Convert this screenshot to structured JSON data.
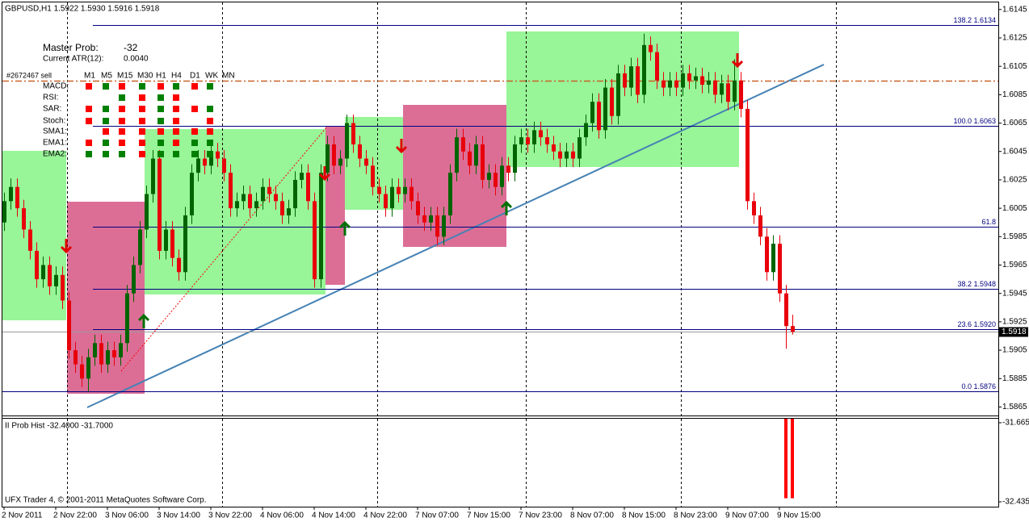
{
  "chart_data": {
    "type": "candlestick",
    "header": "GBPUSD,H1  1.5922 1.5930 1.5916 1.5918",
    "footer": "UFX Trader 4, © 2001-2011 MetaQuotes Software Corp.",
    "up_color": "#006400",
    "down_color": "#e8000b",
    "ylim": [
      1.5859,
      1.615
    ],
    "yticks": [
      1.6145,
      1.6125,
      1.6105,
      1.6085,
      1.6065,
      1.6045,
      1.6025,
      1.6005,
      1.5985,
      1.5965,
      1.5945,
      1.5925,
      1.5905,
      1.5885,
      1.5865
    ],
    "categories": [
      "2 Nov 2011",
      null,
      null,
      null,
      null,
      null,
      null,
      null,
      "2 Nov 22:00",
      null,
      null,
      null,
      null,
      null,
      null,
      null,
      "3 Nov 06:00",
      null,
      null,
      null,
      null,
      null,
      null,
      null,
      "3 Nov 14:00",
      null,
      null,
      null,
      null,
      null,
      null,
      null,
      "3 Nov 22:00",
      null,
      null,
      null,
      null,
      null,
      null,
      null,
      "4 Nov 06:00",
      null,
      null,
      null,
      null,
      null,
      null,
      null,
      "4 Nov 14:00",
      null,
      null,
      null,
      null,
      null,
      null,
      null,
      "4 Nov 22:00",
      null,
      null,
      null,
      null,
      null,
      null,
      null,
      "7 Nov 07:00",
      null,
      null,
      null,
      null,
      null,
      null,
      null,
      "7 Nov 15:00",
      null,
      null,
      null,
      null,
      null,
      null,
      null,
      "7 Nov 23:00",
      null,
      null,
      null,
      null,
      null,
      null,
      null,
      "8 Nov 07:00",
      null,
      null,
      null,
      null,
      null,
      null,
      null,
      "8 Nov 15:00",
      null,
      null,
      null,
      null,
      null,
      null,
      null,
      "8 Nov 23:00",
      null,
      null,
      null,
      null,
      null,
      null,
      null,
      "9 Nov 07:00",
      null,
      null,
      null,
      null,
      null,
      null,
      null,
      "9 Nov 15:00",
      null,
      null
    ],
    "open": [
      1.5995,
      1.601,
      1.602,
      1.6005,
      1.599,
      1.5975,
      1.5955,
      1.5965,
      1.595,
      1.5958,
      1.594,
      1.5905,
      1.5895,
      1.5885,
      1.59,
      1.591,
      1.5895,
      1.5905,
      1.59,
      1.591,
      1.5945,
      1.5965,
      1.599,
      1.6015,
      1.604,
      1.5975,
      1.599,
      1.597,
      1.596,
      1.6,
      1.603,
      1.604,
      1.6035,
      1.6045,
      1.604,
      1.603,
      1.6005,
      1.601,
      1.6015,
      1.6005,
      1.601,
      1.602,
      1.6015,
      1.601,
      1.6,
      1.6005,
      1.6025,
      1.603,
      1.601,
      1.5955,
      1.603,
      1.605,
      1.6035,
      1.604,
      1.6065,
      1.605,
      1.604,
      1.6035,
      1.602,
      1.6015,
      1.6005,
      1.602,
      1.6015,
      1.602,
      1.601,
      1.6,
      1.5995,
      1.6,
      1.5985,
      1.6,
      1.603,
      1.6055,
      1.6045,
      1.6035,
      1.605,
      1.6025,
      1.603,
      1.602,
      1.6035,
      1.603,
      1.605,
      1.6055,
      1.605,
      1.606,
      1.6055,
      1.605,
      1.6045,
      1.604,
      1.6045,
      1.604,
      1.6055,
      1.6065,
      1.608,
      1.606,
      1.609,
      1.607,
      1.61,
      1.609,
      1.6105,
      1.6085,
      1.612,
      1.6115,
      1.6095,
      1.609,
      1.6095,
      1.609,
      1.61,
      1.6095,
      1.6098,
      1.6092,
      1.6095,
      1.6085,
      1.6093,
      1.608,
      1.6095,
      1.6075,
      1.601,
      1.6,
      1.5985,
      1.596,
      1.598,
      1.5945,
      1.5922
    ],
    "high": [
      1.6016,
      1.6026,
      1.6026,
      1.6011,
      1.5996,
      1.5981,
      1.5971,
      1.5971,
      1.5964,
      1.5964,
      1.5946,
      1.5911,
      1.5901,
      1.5906,
      1.5916,
      1.5916,
      1.5911,
      1.5911,
      1.5916,
      1.5951,
      1.5971,
      1.5996,
      1.6021,
      1.6046,
      1.6046,
      1.5996,
      1.5996,
      1.5976,
      1.6006,
      1.6036,
      1.6046,
      1.6046,
      1.6051,
      1.6051,
      1.6046,
      1.6036,
      1.6016,
      1.6021,
      1.6021,
      1.6016,
      1.6026,
      1.6026,
      1.6021,
      1.6016,
      1.6011,
      1.6031,
      1.6036,
      1.6036,
      1.6016,
      1.6036,
      1.6056,
      1.6056,
      1.6046,
      1.6071,
      1.6071,
      1.6056,
      1.6046,
      1.6041,
      1.6026,
      1.6021,
      1.6026,
      1.6026,
      1.6026,
      1.6026,
      1.6016,
      1.6006,
      1.6006,
      1.6006,
      1.6006,
      1.6036,
      1.6061,
      1.6061,
      1.6051,
      1.6056,
      1.6056,
      1.6036,
      1.6036,
      1.6041,
      1.6041,
      1.6056,
      1.6061,
      1.6061,
      1.6066,
      1.6066,
      1.6061,
      1.6056,
      1.6051,
      1.6051,
      1.6051,
      1.6061,
      1.6071,
      1.6086,
      1.6086,
      1.6096,
      1.6096,
      1.6106,
      1.6106,
      1.6111,
      1.6111,
      1.6128,
      1.6126,
      1.6121,
      1.6101,
      1.6101,
      1.6101,
      1.6106,
      1.6106,
      1.6104,
      1.6104,
      1.6101,
      1.6101,
      1.6099,
      1.6099,
      1.611,
      1.6101,
      1.6081,
      1.6016,
      1.6006,
      1.5991,
      1.5986,
      1.5986,
      1.5951,
      1.593
    ],
    "low": [
      1.5989,
      1.6004,
      1.5999,
      1.5984,
      1.5969,
      1.5949,
      1.5949,
      1.5944,
      1.5944,
      1.5934,
      1.5899,
      1.5889,
      1.5879,
      1.5876,
      1.5894,
      1.5889,
      1.5889,
      1.5894,
      1.5894,
      1.5904,
      1.5939,
      1.5959,
      1.5984,
      1.6009,
      1.5969,
      1.5969,
      1.5964,
      1.5954,
      1.5954,
      1.5994,
      1.6024,
      1.6029,
      1.6029,
      1.6034,
      1.6024,
      1.5999,
      1.5999,
      1.6004,
      1.5999,
      1.5999,
      1.6004,
      1.6009,
      1.6004,
      1.5994,
      1.5994,
      1.5999,
      1.6019,
      1.6004,
      1.5949,
      1.5949,
      1.6024,
      1.6029,
      1.6029,
      1.6034,
      1.6044,
      1.6034,
      1.6029,
      1.6014,
      1.6009,
      1.5999,
      1.5999,
      1.6009,
      1.6009,
      1.6004,
      1.5994,
      1.5989,
      1.5989,
      1.5979,
      1.5979,
      1.5994,
      1.6024,
      1.6039,
      1.6029,
      1.6029,
      1.6019,
      1.6019,
      1.6014,
      1.6014,
      1.6024,
      1.6024,
      1.6044,
      1.6044,
      1.6044,
      1.6049,
      1.6044,
      1.6039,
      1.6034,
      1.6034,
      1.6034,
      1.6034,
      1.6049,
      1.6059,
      1.6054,
      1.6054,
      1.6064,
      1.6064,
      1.6084,
      1.6084,
      1.6079,
      1.6079,
      1.6109,
      1.6089,
      1.6084,
      1.6084,
      1.6084,
      1.6084,
      1.6089,
      1.6089,
      1.6086,
      1.6086,
      1.6079,
      1.6079,
      1.6074,
      1.6074,
      1.6069,
      1.6004,
      1.5994,
      1.5979,
      1.5954,
      1.5954,
      1.5939,
      1.5906,
      1.5916
    ],
    "close": [
      1.601,
      1.602,
      1.6005,
      1.599,
      1.5975,
      1.5955,
      1.5965,
      1.595,
      1.5958,
      1.594,
      1.5905,
      1.5895,
      1.5885,
      1.59,
      1.591,
      1.5895,
      1.5905,
      1.59,
      1.591,
      1.5945,
      1.5965,
      1.599,
      1.6015,
      1.604,
      1.5975,
      1.599,
      1.597,
      1.596,
      1.6,
      1.603,
      1.604,
      1.6035,
      1.6045,
      1.604,
      1.603,
      1.6005,
      1.601,
      1.6015,
      1.6005,
      1.601,
      1.602,
      1.6015,
      1.601,
      1.6,
      1.6005,
      1.6025,
      1.603,
      1.601,
      1.5955,
      1.603,
      1.605,
      1.6035,
      1.604,
      1.6065,
      1.605,
      1.604,
      1.6035,
      1.602,
      1.6015,
      1.6005,
      1.602,
      1.6015,
      1.602,
      1.601,
      1.6,
      1.5995,
      1.6,
      1.5985,
      1.6,
      1.603,
      1.6055,
      1.6045,
      1.6035,
      1.605,
      1.6025,
      1.603,
      1.602,
      1.6035,
      1.603,
      1.605,
      1.6055,
      1.605,
      1.606,
      1.6055,
      1.605,
      1.6045,
      1.604,
      1.6045,
      1.604,
      1.6055,
      1.6065,
      1.608,
      1.606,
      1.609,
      1.607,
      1.61,
      1.609,
      1.6105,
      1.6085,
      1.612,
      1.6115,
      1.6095,
      1.609,
      1.6095,
      1.609,
      1.61,
      1.6095,
      1.6098,
      1.6092,
      1.6095,
      1.6085,
      1.6093,
      1.608,
      1.6095,
      1.6075,
      1.601,
      1.6,
      1.5985,
      1.596,
      1.598,
      1.5945,
      1.5922,
      1.5918
    ],
    "fib_color": "#000080",
    "fib_levels": [
      {
        "label": "138.2  1.6134",
        "value": 1.6134
      },
      {
        "label": "100.0  1.6063",
        "value": 1.6063
      },
      {
        "label": "61.8",
        "value": 1.5992
      },
      {
        "label": "38.2  1.5948",
        "value": 1.5948
      },
      {
        "label": "23.6  1.5920",
        "value": 1.592
      },
      {
        "label": "0.0  1.5876",
        "value": 1.5876
      }
    ],
    "order": {
      "label": "#2672467 sell",
      "price": 1.6095,
      "color": "#c8642a"
    },
    "indicator_panel": {
      "master_label": "Master Prob:",
      "master_value": "-32",
      "atr_label": "Current ATR(12):",
      "atr_value": "0.0040",
      "timeframes": [
        "M1",
        "M5",
        "M15",
        "M30",
        "H1",
        "H4",
        "D1",
        "WK",
        "MN"
      ],
      "signal_colors": {
        "r": "#ff0000",
        "g": "#008000"
      },
      "rows": [
        {
          "name": "MACD:",
          "signals": [
            "r",
            "g",
            "r",
            "g",
            "r",
            "g",
            "r",
            "g",
            null
          ]
        },
        {
          "name": "RSI:",
          "signals": [
            null,
            null,
            "g",
            "r",
            "g",
            "r",
            null,
            null,
            null
          ]
        },
        {
          "name": "SAR:",
          "signals": [
            "r",
            "g",
            "r",
            "r",
            "g",
            "r",
            "r",
            "g",
            null
          ]
        },
        {
          "name": "Stoch:",
          "signals": [
            "r",
            "g",
            "r",
            "r",
            "g",
            "r",
            null,
            "r",
            null
          ]
        },
        {
          "name": "SMA1:",
          "signals": [
            null,
            "r",
            "r",
            "r",
            "r",
            "r",
            "r",
            "r",
            null
          ]
        },
        {
          "name": "EMA1:",
          "signals": [
            "r",
            "g",
            "r",
            "r",
            "g",
            "r",
            "g",
            "g",
            null
          ]
        },
        {
          "name": "EMA2:",
          "signals": [
            "g",
            "g",
            "g",
            "r",
            "g",
            "g",
            "g",
            "g",
            null
          ]
        }
      ]
    },
    "sub_chart": {
      "title": "II Prob Hist -32.4000 -31.7000",
      "color": "#ff0000",
      "ylim": [
        -32.435,
        -31.665
      ],
      "yticks": [
        -31.665,
        -32.435
      ],
      "values": [
        null,
        null,
        null,
        null,
        null,
        null,
        null,
        null,
        null,
        null,
        null,
        null,
        null,
        null,
        null,
        null,
        null,
        null,
        null,
        null,
        null,
        null,
        null,
        null,
        null,
        null,
        null,
        null,
        null,
        null,
        null,
        null,
        null,
        null,
        null,
        null,
        null,
        null,
        null,
        null,
        null,
        null,
        null,
        null,
        null,
        null,
        null,
        null,
        null,
        null,
        null,
        null,
        null,
        null,
        null,
        null,
        null,
        null,
        null,
        null,
        null,
        null,
        null,
        null,
        null,
        null,
        null,
        null,
        null,
        null,
        null,
        null,
        null,
        null,
        null,
        null,
        null,
        null,
        null,
        null,
        null,
        null,
        null,
        null,
        null,
        null,
        null,
        null,
        null,
        null,
        null,
        null,
        null,
        null,
        null,
        null,
        null,
        null,
        null,
        null,
        null,
        null,
        null,
        null,
        null,
        null,
        null,
        null,
        null,
        null,
        null,
        null,
        null,
        null,
        null,
        null,
        null,
        null,
        null,
        null,
        null,
        -32.4,
        -32.4
      ]
    }
  }
}
